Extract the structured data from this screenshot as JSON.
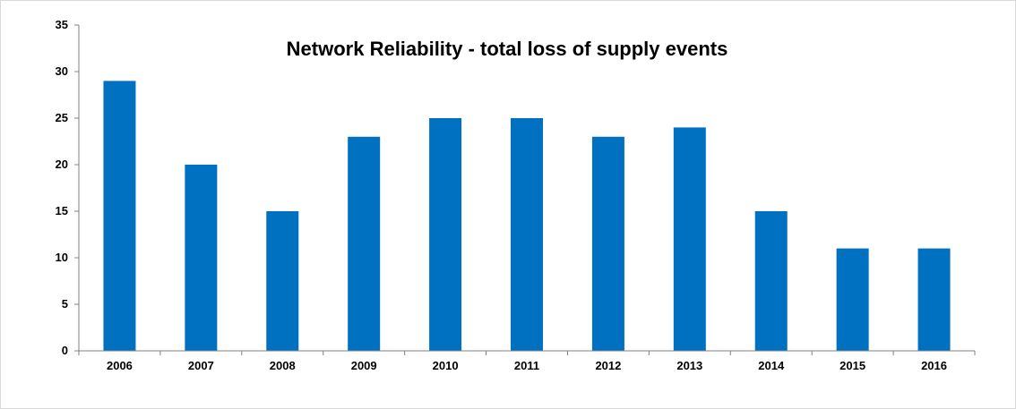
{
  "chart_data": {
    "type": "bar",
    "title": "Network Reliability - total loss of supply events",
    "xlabel": "",
    "ylabel": "",
    "categories": [
      "2006",
      "2007",
      "2008",
      "2009",
      "2010",
      "2011",
      "2012",
      "2013",
      "2014",
      "2015",
      "2016"
    ],
    "values": [
      29,
      20,
      15,
      23,
      25,
      25,
      23,
      24,
      15,
      11,
      11
    ],
    "ylim": [
      0,
      35
    ],
    "yticks": [
      "0",
      "5",
      "10",
      "15",
      "20",
      "25",
      "30",
      "35"
    ],
    "bar_color": "#0070C0",
    "grid": false,
    "legend": "none"
  }
}
